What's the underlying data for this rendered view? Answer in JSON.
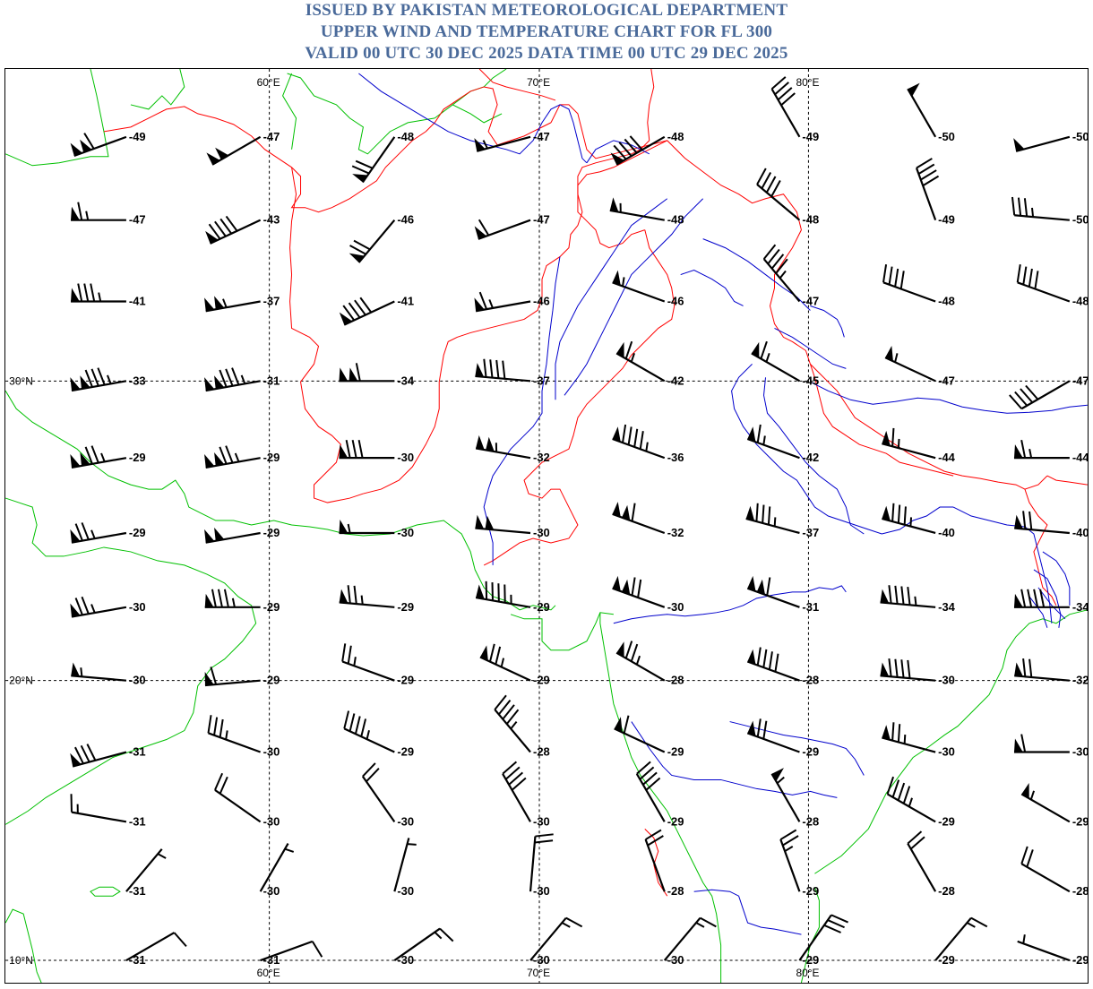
{
  "header": {
    "line1": "ISSUED BY PAKISTAN METEOROLOGICAL DEPARTMENT",
    "line2": "UPPER WIND AND TEMPERATURE CHART FOR FL 300",
    "line3": "VALID 00 UTC 30 DEC 2025 DATA TIME 00 UTC 29 DEC 2025"
  },
  "colors": {
    "title": "#4a6a9a",
    "border": "#ff0000",
    "coast": "#00c000",
    "river": "#0000cc",
    "barb": "#000000"
  },
  "grid": {
    "lon_labels": [
      "60°E",
      "70°E",
      "80°E"
    ],
    "lat_labels": [
      "30°N",
      "20°N",
      "10°N"
    ]
  },
  "stations": [
    {
      "temp": -49,
      "dir": 250,
      "spd": 110
    },
    {
      "temp": -47,
      "dir": 240,
      "spd": 100
    },
    {
      "temp": -48,
      "dir": 215,
      "spd": 70
    },
    {
      "temp": -47,
      "dir": 255,
      "spd": 55
    },
    {
      "temp": -48,
      "dir": 240,
      "spd": 90
    },
    {
      "temp": -49,
      "dir": 330,
      "spd": 40
    },
    {
      "temp": -50,
      "dir": 330,
      "spd": 50
    },
    {
      "temp": -50,
      "dir": 255,
      "spd": 50
    },
    {
      "temp": -47,
      "dir": 270,
      "spd": 65
    },
    {
      "temp": -43,
      "dir": 245,
      "spd": 90
    },
    {
      "temp": -46,
      "dir": 220,
      "spd": 70
    },
    {
      "temp": -47,
      "dir": 250,
      "spd": 60
    },
    {
      "temp": -48,
      "dir": 280,
      "spd": 55
    },
    {
      "temp": -48,
      "dir": 310,
      "spd": 40
    },
    {
      "temp": -49,
      "dir": 340,
      "spd": 40
    },
    {
      "temp": -50,
      "dir": 275,
      "spd": 35
    },
    {
      "temp": -41,
      "dir": 270,
      "spd": 85
    },
    {
      "temp": -37,
      "dir": 260,
      "spd": 105
    },
    {
      "temp": -41,
      "dir": 245,
      "spd": 90
    },
    {
      "temp": -46,
      "dir": 260,
      "spd": 65
    },
    {
      "temp": -46,
      "dir": 290,
      "spd": 55
    },
    {
      "temp": -47,
      "dir": 320,
      "spd": 45
    },
    {
      "temp": -48,
      "dir": 290,
      "spd": 40
    },
    {
      "temp": -48,
      "dir": 290,
      "spd": 40
    },
    {
      "temp": -33,
      "dir": 260,
      "spd": 135
    },
    {
      "temp": -31,
      "dir": 260,
      "spd": 135
    },
    {
      "temp": -34,
      "dir": 270,
      "spd": 110
    },
    {
      "temp": -37,
      "dir": 275,
      "spd": 90
    },
    {
      "temp": -42,
      "dir": 300,
      "spd": 65
    },
    {
      "temp": -45,
      "dir": 300,
      "spd": 65
    },
    {
      "temp": -47,
      "dir": 295,
      "spd": 55
    },
    {
      "temp": -47,
      "dir": 240,
      "spd": 40
    },
    {
      "temp": -29,
      "dir": 260,
      "spd": 125
    },
    {
      "temp": -29,
      "dir": 260,
      "spd": 125
    },
    {
      "temp": -30,
      "dir": 270,
      "spd": 80
    },
    {
      "temp": -32,
      "dir": 280,
      "spd": 105
    },
    {
      "temp": -36,
      "dir": 290,
      "spd": 95
    },
    {
      "temp": -42,
      "dir": 290,
      "spd": 65
    },
    {
      "temp": -44,
      "dir": 285,
      "spd": 65
    },
    {
      "temp": -44,
      "dir": 270,
      "spd": 65
    },
    {
      "temp": -29,
      "dir": 260,
      "spd": 75
    },
    {
      "temp": -29,
      "dir": 260,
      "spd": 100
    },
    {
      "temp": -30,
      "dir": 270,
      "spd": 55
    },
    {
      "temp": -30,
      "dir": 275,
      "spd": 100
    },
    {
      "temp": -32,
      "dir": 290,
      "spd": 110
    },
    {
      "temp": -37,
      "dir": 285,
      "spd": 85
    },
    {
      "temp": -40,
      "dir": 285,
      "spd": 85
    },
    {
      "temp": -40,
      "dir": 275,
      "spd": 70
    },
    {
      "temp": -30,
      "dir": 260,
      "spd": 75
    },
    {
      "temp": -29,
      "dir": 270,
      "spd": 85
    },
    {
      "temp": -29,
      "dir": 275,
      "spd": 75
    },
    {
      "temp": -29,
      "dir": 280,
      "spd": 95
    },
    {
      "temp": -30,
      "dir": 290,
      "spd": 120
    },
    {
      "temp": -31,
      "dir": 290,
      "spd": 110
    },
    {
      "temp": -34,
      "dir": 275,
      "spd": 95
    },
    {
      "temp": -34,
      "dir": 270,
      "spd": 90
    },
    {
      "temp": -30,
      "dir": 275,
      "spd": 55
    },
    {
      "temp": -29,
      "dir": 265,
      "spd": 60
    },
    {
      "temp": -29,
      "dir": 290,
      "spd": 25
    },
    {
      "temp": -29,
      "dir": 295,
      "spd": 75
    },
    {
      "temp": -28,
      "dir": 300,
      "spd": 75
    },
    {
      "temp": -28,
      "dir": 290,
      "spd": 90
    },
    {
      "temp": -30,
      "dir": 275,
      "spd": 90
    },
    {
      "temp": -32,
      "dir": 275,
      "spd": 70
    },
    {
      "temp": -31,
      "dir": 255,
      "spd": 80
    },
    {
      "temp": -30,
      "dir": 290,
      "spd": 35
    },
    {
      "temp": -29,
      "dir": 295,
      "spd": 45
    },
    {
      "temp": -28,
      "dir": 320,
      "spd": 45
    },
    {
      "temp": -29,
      "dir": 295,
      "spd": 60
    },
    {
      "temp": -29,
      "dir": 290,
      "spd": 70
    },
    {
      "temp": -30,
      "dir": 285,
      "spd": 75
    },
    {
      "temp": -30,
      "dir": 270,
      "spd": 60
    },
    {
      "temp": -31,
      "dir": 280,
      "spd": 15
    },
    {
      "temp": -30,
      "dir": 305,
      "spd": 20
    },
    {
      "temp": -30,
      "dir": 325,
      "spd": 20
    },
    {
      "temp": -30,
      "dir": 330,
      "spd": 40
    },
    {
      "temp": -29,
      "dir": 330,
      "spd": 40
    },
    {
      "temp": -28,
      "dir": 330,
      "spd": 55
    },
    {
      "temp": -29,
      "dir": 300,
      "spd": 45
    },
    {
      "temp": -29,
      "dir": 300,
      "spd": 55
    },
    {
      "temp": -31,
      "dir": 40,
      "spd": 5
    },
    {
      "temp": -30,
      "dir": 30,
      "spd": 5
    },
    {
      "temp": -30,
      "dir": 15,
      "spd": 5
    },
    {
      "temp": -30,
      "dir": 5,
      "spd": 20
    },
    {
      "temp": -28,
      "dir": 340,
      "spd": 20
    },
    {
      "temp": -29,
      "dir": 340,
      "spd": 25
    },
    {
      "temp": -28,
      "dir": 330,
      "spd": 20
    },
    {
      "temp": -28,
      "dir": 300,
      "spd": 20
    },
    {
      "temp": -31,
      "dir": 60,
      "spd": 10
    },
    {
      "temp": -31,
      "dir": 70,
      "spd": 10
    },
    {
      "temp": -30,
      "dir": 55,
      "spd": 15
    },
    {
      "temp": -30,
      "dir": 40,
      "spd": 15
    },
    {
      "temp": -30,
      "dir": 40,
      "spd": 15
    },
    {
      "temp": -29,
      "dir": 35,
      "spd": 30
    },
    {
      "temp": -29,
      "dir": 40,
      "spd": 15
    },
    {
      "temp": -29,
      "dir": 290,
      "spd": 5
    }
  ]
}
